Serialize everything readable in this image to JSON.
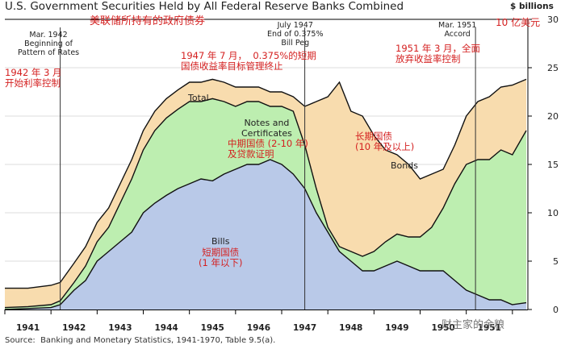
{
  "title": "U.S. Government Securities Held by All Federal Reserve Banks Combined",
  "title_cn": "美联储所持有的政府债券",
  "unit_label": "$ billions",
  "unit_label_cn": "10 亿美元",
  "source": "Source:  Banking and Monetary Statistics, 1941-1970, Table 9.5(a).",
  "watermark": "财主家的余粮",
  "annotations": {
    "mar1942": "Mar. 1942\nBeginning of\nPattern of Rates",
    "mar1942_cn": "1942 年 3 月\n开始利率控制",
    "jul1947": "July 1947\nEnd of 0.375%\nBill Peg",
    "jul1947_cn": "1947 年 7 月，  0.375%的短期\n国债收益率目标管理终止",
    "mar1951": "Mar. 1951\nAccord",
    "mar1951_cn": "1951 年 3 月，全面\n放弃收益率控制"
  },
  "area_labels": {
    "total": "Total",
    "notes": "Notes and\nCertificates",
    "notes_cn": "中期国债 (2-10 年)\n及贷款证明",
    "bonds": "Bonds",
    "bonds_cn": "长期国债\n(10 年及以上)",
    "bills": "Bills",
    "bills_cn": "短期国债\n(1 年以下)"
  },
  "colors": {
    "bills": "#b9c9e8",
    "notes": "#bdeeb0",
    "bonds": "#f8dcae",
    "outline": "#111111",
    "grid": "#dcdcdc",
    "cn_text": "#d42020"
  },
  "chart_data": {
    "type": "area",
    "title": "U.S. Government Securities Held by All Federal Reserve Banks Combined",
    "ylabel": "$ billions",
    "ylim": [
      0,
      30
    ],
    "yticks": [
      0,
      5,
      10,
      15,
      20,
      25,
      30
    ],
    "xlim": [
      1941.0,
      1952.3
    ],
    "xticks": [
      "1941",
      "1942",
      "1943",
      "1944",
      "1945",
      "1946",
      "1947",
      "1948",
      "1949",
      "1950",
      "1951"
    ],
    "grid": true,
    "vertical_lines": [
      1942.2,
      1947.5,
      1951.2
    ],
    "x": [
      1941.0,
      1941.5,
      1942.0,
      1942.2,
      1942.5,
      1942.75,
      1943.0,
      1943.25,
      1943.5,
      1943.75,
      1944.0,
      1944.25,
      1944.5,
      1944.75,
      1945.0,
      1945.25,
      1945.5,
      1945.75,
      1946.0,
      1946.25,
      1946.5,
      1946.75,
      1947.0,
      1947.25,
      1947.5,
      1947.75,
      1948.0,
      1948.25,
      1948.5,
      1948.75,
      1949.0,
      1949.25,
      1949.5,
      1949.75,
      1950.0,
      1950.25,
      1950.5,
      1950.75,
      1951.0,
      1951.25,
      1951.5,
      1951.75,
      1952.0,
      1952.3
    ],
    "series": [
      {
        "name": "Bills",
        "values": [
          0.0,
          0.1,
          0.2,
          0.5,
          2.0,
          3.0,
          5.0,
          6.0,
          7.0,
          8.0,
          10.0,
          11.0,
          11.8,
          12.5,
          13.0,
          13.5,
          13.3,
          14.0,
          14.5,
          15.0,
          15.0,
          15.5,
          15.0,
          14.0,
          12.5,
          10.0,
          8.0,
          6.0,
          5.0,
          4.0,
          4.0,
          4.5,
          5.0,
          4.5,
          4.0,
          4.0,
          4.0,
          3.0,
          2.0,
          1.5,
          1.0,
          1.0,
          0.5,
          0.7
        ]
      },
      {
        "name": "Notes and Certificates",
        "values": [
          0.2,
          0.2,
          0.3,
          0.4,
          0.8,
          1.5,
          2.0,
          2.5,
          4.0,
          5.5,
          6.5,
          7.5,
          8.0,
          8.2,
          8.5,
          8.0,
          8.5,
          7.5,
          6.5,
          6.5,
          6.5,
          5.5,
          6.0,
          6.5,
          4.5,
          2.5,
          0.5,
          0.5,
          1.0,
          1.5,
          2.0,
          2.5,
          2.8,
          3.0,
          3.5,
          4.5,
          6.5,
          10.0,
          13.0,
          14.0,
          14.5,
          15.5,
          15.5,
          17.8
        ]
      },
      {
        "name": "Bonds",
        "values": [
          2.0,
          1.9,
          2.0,
          1.9,
          2.0,
          2.0,
          2.0,
          2.0,
          2.0,
          2.0,
          2.0,
          2.0,
          2.0,
          2.0,
          2.0,
          2.0,
          2.0,
          2.0,
          2.0,
          1.5,
          1.5,
          1.5,
          1.5,
          1.5,
          4.0,
          9.0,
          13.5,
          17.0,
          14.5,
          14.5,
          12.0,
          9.5,
          8.2,
          7.5,
          6.0,
          5.5,
          4.0,
          4.0,
          5.0,
          6.0,
          6.5,
          6.5,
          7.2,
          5.3
        ]
      }
    ]
  }
}
